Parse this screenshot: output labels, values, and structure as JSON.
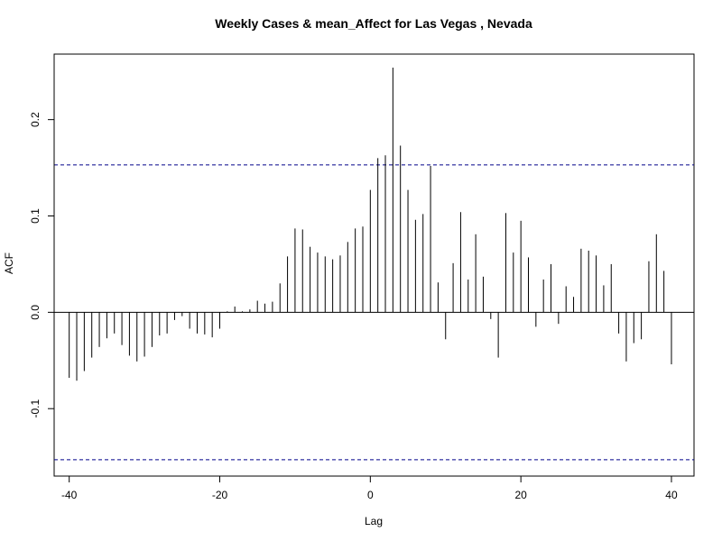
{
  "chart_data": {
    "type": "bar",
    "title": "Weekly Cases & mean_Affect for Las Vegas , Nevada",
    "xlabel": "Lag",
    "ylabel": "ACF",
    "xlim": [
      -42,
      43
    ],
    "ylim": [
      -0.17,
      0.268
    ],
    "xticks": [
      -40,
      -20,
      0,
      20,
      40
    ],
    "yticks": [
      -0.1,
      0.0,
      0.1,
      0.2
    ],
    "xtick_labels": [
      "-40",
      "-20",
      "0",
      "20",
      "40"
    ],
    "ytick_labels": [
      "-0.1",
      "0.0",
      "0.1",
      "0.2"
    ],
    "confidence_bounds": [
      0.153,
      -0.153
    ],
    "x": [
      -40,
      -39,
      -38,
      -37,
      -36,
      -35,
      -34,
      -33,
      -32,
      -31,
      -30,
      -29,
      -28,
      -27,
      -26,
      -25,
      -24,
      -23,
      -22,
      -21,
      -20,
      -19,
      -18,
      -17,
      -16,
      -15,
      -14,
      -13,
      -12,
      -11,
      -10,
      -9,
      -8,
      -7,
      -6,
      -5,
      -4,
      -3,
      -2,
      -1,
      0,
      1,
      2,
      3,
      4,
      5,
      6,
      7,
      8,
      9,
      10,
      11,
      12,
      13,
      14,
      15,
      16,
      17,
      18,
      19,
      20,
      21,
      22,
      23,
      24,
      25,
      26,
      27,
      28,
      29,
      30,
      31,
      32,
      33,
      34,
      35,
      36,
      37,
      38,
      39,
      40
    ],
    "values": [
      -0.068,
      -0.071,
      -0.061,
      -0.047,
      -0.036,
      -0.027,
      -0.022,
      -0.034,
      -0.045,
      -0.051,
      -0.046,
      -0.036,
      -0.024,
      -0.022,
      -0.008,
      -0.004,
      -0.017,
      -0.022,
      -0.023,
      -0.026,
      -0.017,
      0.001,
      0.006,
      0.001,
      0.003,
      0.012,
      0.009,
      0.011,
      0.03,
      0.058,
      0.087,
      0.086,
      0.068,
      0.062,
      0.058,
      0.055,
      0.059,
      0.073,
      0.087,
      0.089,
      0.127,
      0.16,
      0.163,
      0.254,
      0.173,
      0.127,
      0.096,
      0.102,
      0.152,
      0.031,
      -0.028,
      0.051,
      0.104,
      0.034,
      0.081,
      0.037,
      -0.007,
      -0.047,
      0.103,
      0.062,
      0.095,
      0.057,
      -0.015,
      0.034,
      0.05,
      -0.012,
      0.027,
      0.016,
      0.066,
      0.064,
      0.059,
      0.028,
      0.05,
      -0.022,
      -0.051,
      -0.032,
      -0.028,
      0.053,
      0.081,
      0.043,
      -0.054
    ],
    "colors": {
      "bars": "#000000",
      "bounds": "#00008B",
      "frame": "#000000"
    },
    "grid": false
  }
}
